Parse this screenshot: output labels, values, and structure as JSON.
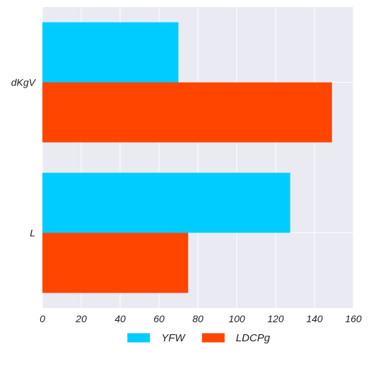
{
  "chart_data": {
    "type": "bar",
    "orientation": "horizontal",
    "categories": [
      "dKgV",
      "L"
    ],
    "series": [
      {
        "name": "YFW",
        "values": [
          70,
          127.5
        ],
        "color": "#00CCFF"
      },
      {
        "name": "LDCPg",
        "values": [
          149,
          75
        ],
        "color": "#FF4500"
      }
    ],
    "xlim": [
      0,
      160
    ],
    "xticks": [
      0,
      20,
      40,
      60,
      80,
      100,
      120,
      140,
      160
    ],
    "title": "",
    "xlabel": "",
    "ylabel": "",
    "grid": true,
    "legend": "bottom-center",
    "background": "#EAEAF2"
  }
}
